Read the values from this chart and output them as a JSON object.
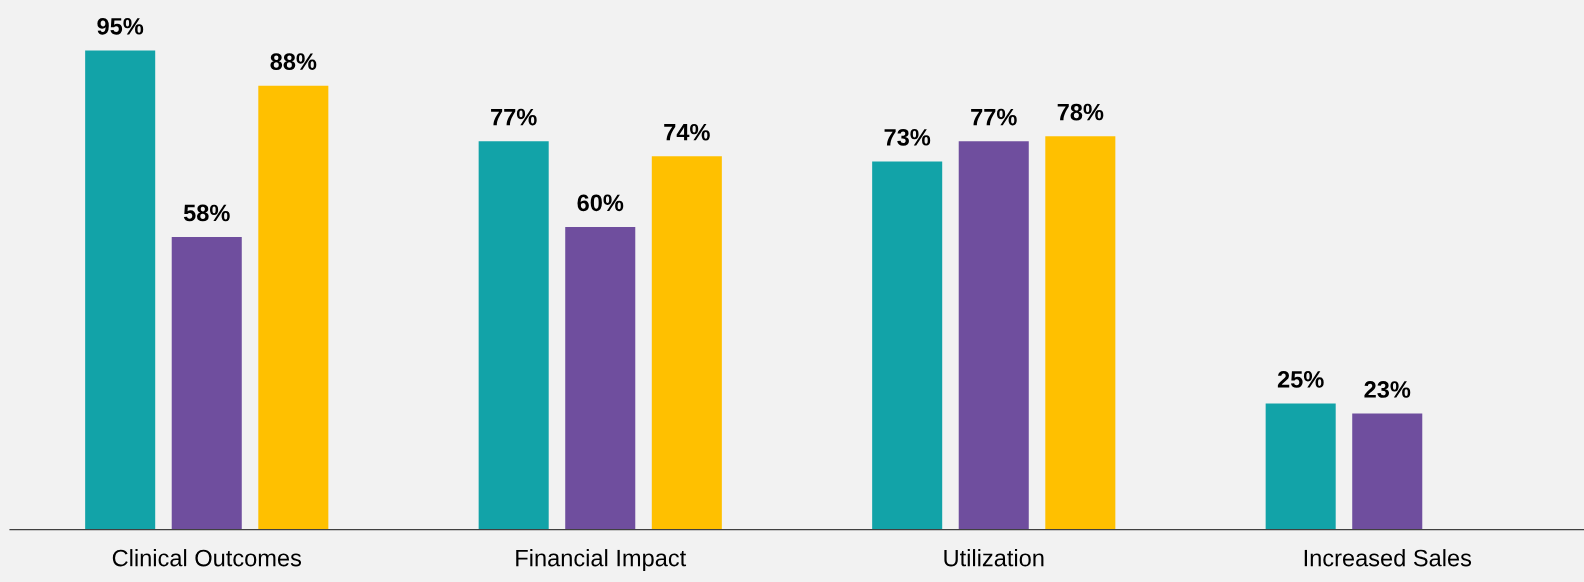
{
  "chart_data": {
    "type": "bar",
    "categories": [
      "Clinical Outcomes",
      "Financial Impact",
      "Utilization",
      "Increased Sales"
    ],
    "series": [
      {
        "color": "#12a3a8",
        "values": [
          95,
          77,
          73,
          25
        ],
        "value_labels": [
          "95%",
          "77%",
          "73%",
          "25%"
        ]
      },
      {
        "color": "#6f4e9e",
        "values": [
          58,
          60,
          77,
          23
        ],
        "value_labels": [
          "58%",
          "60%",
          "77%",
          "23%"
        ]
      },
      {
        "color": "#ffc000",
        "values": [
          88,
          74,
          78,
          null
        ],
        "value_labels": [
          "88%",
          "74%",
          "78%",
          null
        ]
      }
    ],
    "ylim": [
      0,
      105
    ],
    "tick_labels": "x",
    "grid": false
  }
}
